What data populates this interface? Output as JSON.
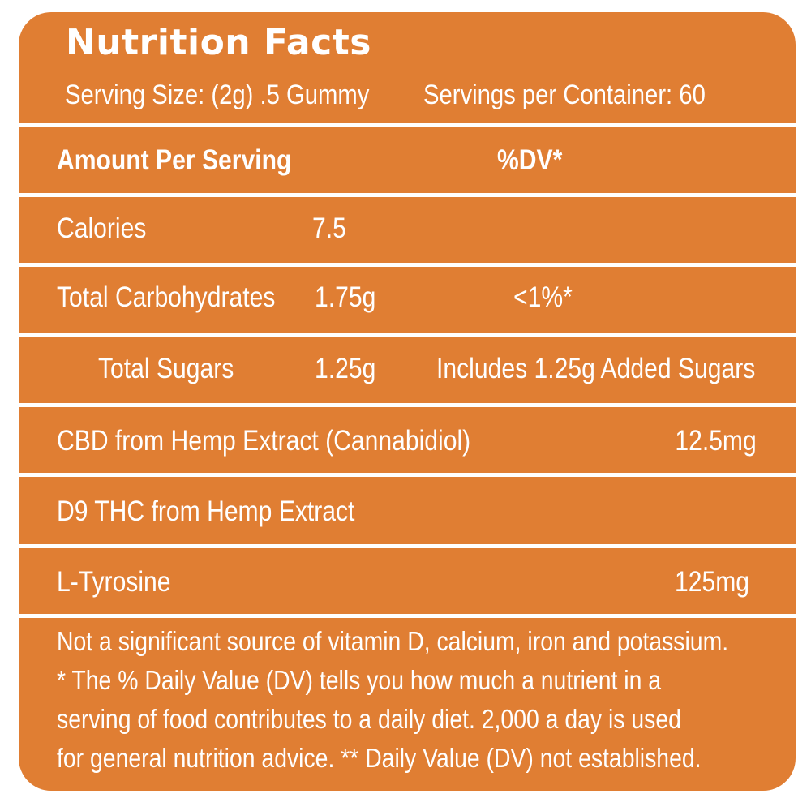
{
  "label": {
    "title": "Nutrition Facts",
    "serving_size": "Serving Size: (2g) .5 Gummy",
    "servings_per_container": "Servings per Container: 60",
    "header": {
      "amount": "Amount Per Serving",
      "dv": "%DV*"
    },
    "rows": [
      {
        "name": "Calories",
        "amount": "7.5",
        "dv": ""
      },
      {
        "name": "Total Carbohydrates",
        "amount": "1.75g",
        "dv": "<1%*"
      },
      {
        "name": "Total Sugars",
        "amount": "1.25g",
        "dv": "Includes 1.25g Added Sugars"
      },
      {
        "name": "CBD from Hemp Extract (Cannabidiol)",
        "amount": "12.5mg"
      },
      {
        "name": "D9 THC from Hemp Extract",
        "amount": ""
      },
      {
        "name": "L-Tyrosine",
        "amount": "125mg"
      }
    ],
    "footnotes": [
      "Not a significant source of vitamin D, calcium, iron and potassium.",
      "* The % Daily Value (DV) tells you how much a nutrient in a",
      "serving of food contributes to a daily diet. 2,000 a day is used",
      "for general nutrition advice.  ** Daily Value (DV) not established."
    ],
    "colors": {
      "background": "#e07e33",
      "text": "#ffffff"
    }
  }
}
